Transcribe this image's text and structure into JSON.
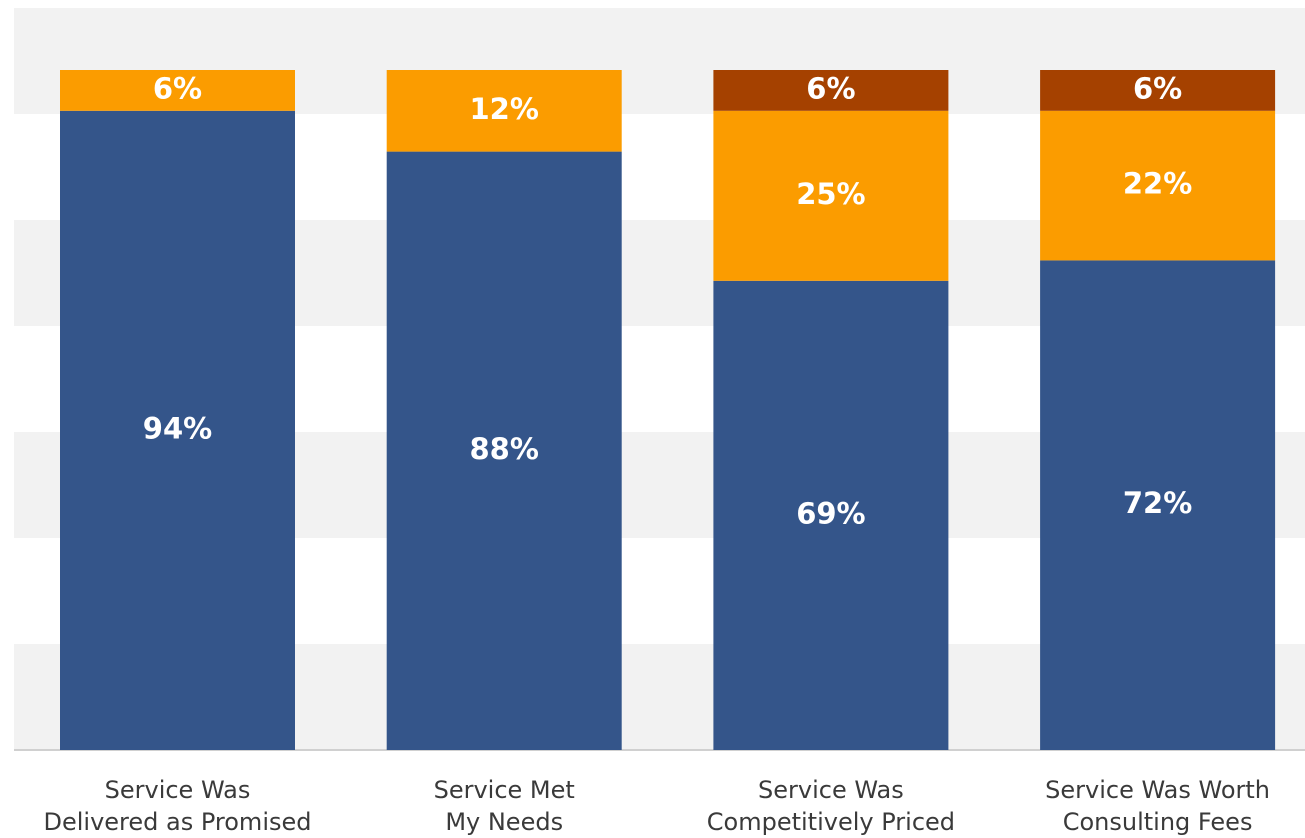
{
  "chart_data": {
    "type": "stacked_bar",
    "categories": [
      [
        "Service Was",
        "Delivered as Promised"
      ],
      [
        "Service Met",
        "My Needs"
      ],
      [
        "Service Was",
        "Competitively Priced"
      ],
      [
        "Service Was Worth",
        "Consulting Fees"
      ]
    ],
    "series": [
      {
        "color": "#34558a",
        "values": [
          94,
          88,
          69,
          72
        ],
        "value_labels": [
          "94%",
          "88%",
          "69%",
          "72%"
        ]
      },
      {
        "color": "#fb9c00",
        "values": [
          6,
          12,
          25,
          22
        ],
        "value_labels": [
          "6%",
          "12%",
          "25%",
          "22%"
        ]
      },
      {
        "color": "#a54100",
        "values": [
          null,
          null,
          6,
          6
        ],
        "value_labels": [
          null,
          null,
          "6%",
          "6%"
        ]
      }
    ],
    "ylim": [
      0,
      100
    ]
  }
}
